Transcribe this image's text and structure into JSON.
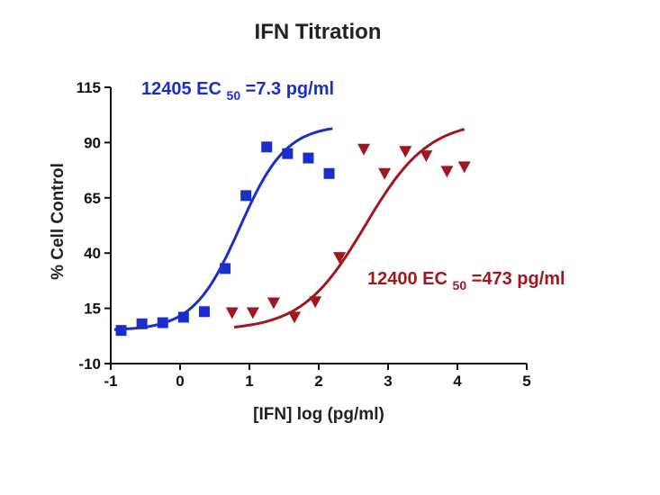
{
  "chart_data": {
    "type": "scatter",
    "title": "IFN Titration",
    "xlabel": "[IFN] log (pg/ml)",
    "ylabel": "% Cell Control",
    "xlim": [
      -1,
      5
    ],
    "ylim": [
      -10,
      115
    ],
    "x_ticks": [
      -1,
      0,
      1,
      2,
      3,
      4,
      5
    ],
    "y_ticks": [
      -10,
      15,
      40,
      65,
      90,
      115
    ],
    "grid": false,
    "legend": "none",
    "annotations": [
      {
        "id": "blue",
        "prefix": "12405 EC",
        "sub": "50",
        "suffix": "=7.3 pg/ml",
        "color": "#1a2fc9"
      },
      {
        "id": "red",
        "prefix": "12400 EC",
        "sub": "50",
        "suffix": "=473 pg/ml",
        "color": "#a0181d"
      }
    ],
    "series": [
      {
        "marker": "square",
        "color": "#1a2fc9",
        "points": [
          [
            -0.85,
            5
          ],
          [
            -0.55,
            8
          ],
          [
            -0.25,
            8.5
          ],
          [
            0.05,
            11
          ],
          [
            0.35,
            13.5
          ],
          [
            0.65,
            33
          ],
          [
            0.95,
            66
          ],
          [
            1.25,
            88
          ],
          [
            1.55,
            85
          ],
          [
            1.85,
            83
          ],
          [
            2.15,
            76
          ]
        ],
        "fit": {
          "bottom": 5,
          "top": 98,
          "logEC50": 0.86,
          "hill": 1.3,
          "xmin": -0.95,
          "xmax": 2.2
        }
      },
      {
        "marker": "triangle-down",
        "color": "#a0181d",
        "points": [
          [
            0.75,
            13
          ],
          [
            1.05,
            13
          ],
          [
            1.35,
            17.5
          ],
          [
            1.65,
            11
          ],
          [
            1.95,
            18
          ],
          [
            2.3,
            38
          ],
          [
            2.65,
            87
          ],
          [
            2.95,
            76
          ],
          [
            3.25,
            86
          ],
          [
            3.55,
            84
          ],
          [
            3.85,
            77
          ],
          [
            4.1,
            79
          ]
        ],
        "fit": {
          "bottom": 5,
          "top": 100,
          "logEC50": 2.67,
          "hill": 0.95,
          "xmin": 0.78,
          "xmax": 4.1
        }
      }
    ]
  }
}
